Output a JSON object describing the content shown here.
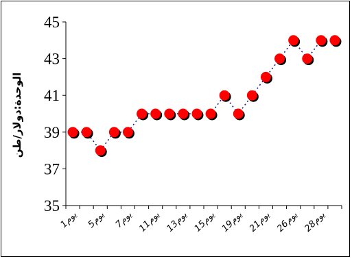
{
  "chart_data": {
    "type": "line",
    "title": "",
    "xlabel": "",
    "ylabel": "الوحدة:دولار/طن",
    "ylim": [
      35,
      45
    ],
    "yticks": [
      35,
      37,
      39,
      41,
      43,
      45
    ],
    "grid": false,
    "legend": "none",
    "line_style": "dotted",
    "line_color": "#1a1a8c",
    "marker_color": "#ff0000",
    "marker_shadow_color": "#000000",
    "x_tick_labels": [
      "1يوم",
      "5يوم",
      "7يوم",
      "11يوم",
      "13يوم",
      "15يوم",
      "19يوم",
      "21يوم",
      "26يوم",
      "28يوم"
    ],
    "x_tick_positions": [
      1,
      3,
      5,
      7,
      9,
      11,
      13,
      15,
      17,
      19
    ],
    "series": [
      {
        "name": "",
        "values": [
          39,
          39,
          38,
          39,
          39,
          40,
          40,
          40,
          40,
          40,
          40,
          41,
          40,
          41,
          42,
          43,
          44,
          43,
          44,
          44
        ]
      }
    ]
  }
}
